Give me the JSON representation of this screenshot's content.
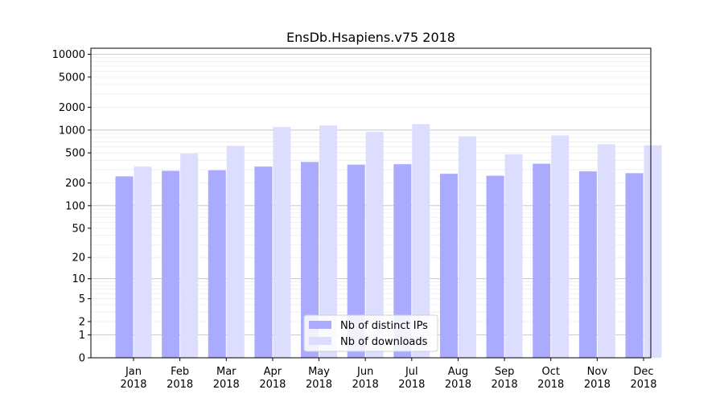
{
  "chart_data": {
    "type": "bar",
    "title": "EnsDb.Hsapiens.v75 2018",
    "xlabel": "",
    "ylabel": "",
    "y_scale": "symlog",
    "ylim": [
      0,
      12000
    ],
    "y_ticks": [
      0,
      1,
      2,
      5,
      10,
      20,
      50,
      100,
      200,
      500,
      1000,
      2000,
      5000,
      10000
    ],
    "grid": true,
    "legend_position": "bottom-center",
    "categories": [
      {
        "month": "Jan",
        "year": "2018"
      },
      {
        "month": "Feb",
        "year": "2018"
      },
      {
        "month": "Mar",
        "year": "2018"
      },
      {
        "month": "Apr",
        "year": "2018"
      },
      {
        "month": "May",
        "year": "2018"
      },
      {
        "month": "Jun",
        "year": "2018"
      },
      {
        "month": "Jul",
        "year": "2018"
      },
      {
        "month": "Aug",
        "year": "2018"
      },
      {
        "month": "Sep",
        "year": "2018"
      },
      {
        "month": "Oct",
        "year": "2018"
      },
      {
        "month": "Nov",
        "year": "2018"
      },
      {
        "month": "Dec",
        "year": "2018"
      }
    ],
    "series": [
      {
        "name": "Nb of distinct IPs",
        "color": "#aaaaff",
        "values": [
          245,
          290,
          295,
          330,
          380,
          350,
          355,
          265,
          250,
          360,
          285,
          270
        ]
      },
      {
        "name": "Nb of downloads",
        "color": "#ddddff",
        "values": [
          330,
          490,
          620,
          1100,
          1150,
          950,
          1200,
          830,
          480,
          850,
          650,
          630
        ]
      }
    ]
  }
}
